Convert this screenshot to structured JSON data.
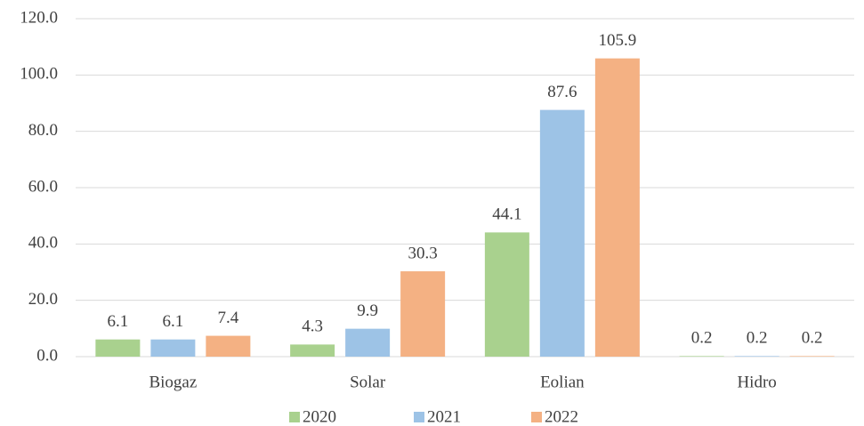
{
  "chart_data": {
    "type": "bar",
    "categories": [
      "Biogaz",
      "Solar",
      "Eolian",
      "Hidro"
    ],
    "series": [
      {
        "name": "2020",
        "color": "#a9d18e",
        "values": [
          6.1,
          4.3,
          44.1,
          0.2
        ]
      },
      {
        "name": "2021",
        "color": "#9dc3e6",
        "values": [
          6.1,
          9.9,
          87.6,
          0.2
        ]
      },
      {
        "name": "2022",
        "color": "#f4b183",
        "values": [
          7.4,
          30.3,
          105.9,
          0.2
        ]
      }
    ],
    "ylim": [
      0,
      120
    ],
    "yticks": [
      {
        "value": 0,
        "label": "0.0"
      },
      {
        "value": 20,
        "label": "20.0"
      },
      {
        "value": 40,
        "label": "40.0"
      },
      {
        "value": 60,
        "label": "60.0"
      },
      {
        "value": 80,
        "label": "80.0"
      },
      {
        "value": 100,
        "label": "100.0"
      },
      {
        "value": 120,
        "label": "120.0"
      }
    ],
    "grid": true,
    "legend": "bottom"
  }
}
